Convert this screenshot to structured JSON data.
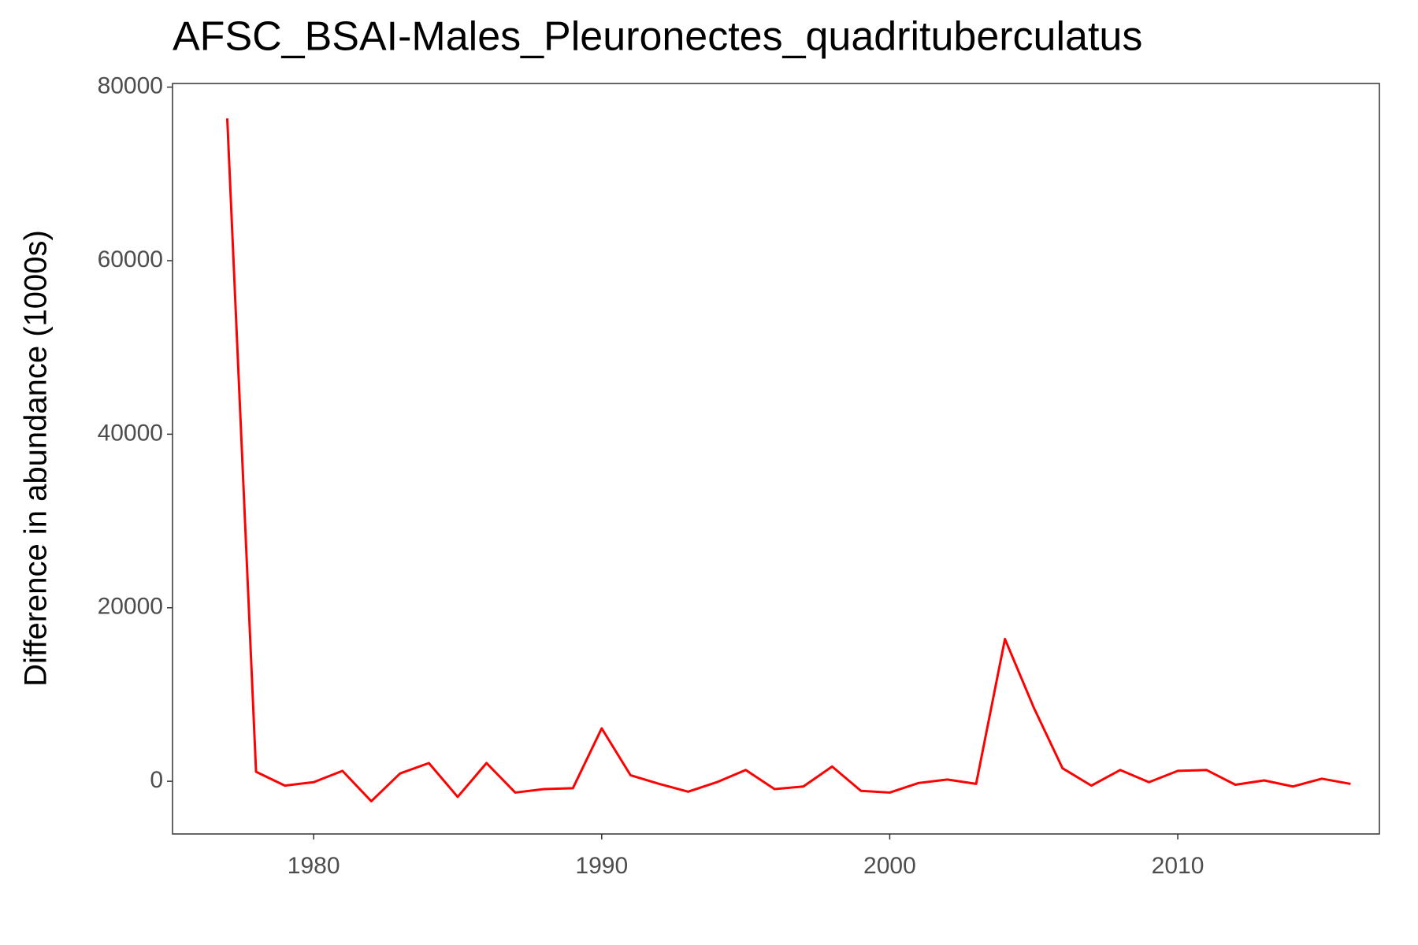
{
  "chart_data": {
    "type": "line",
    "title": "AFSC_BSAI-Males_Pleuronectes_quadrituberculatus",
    "y_label": "Difference in abundance (1000s)",
    "x": [
      1977,
      1978,
      1979,
      1980,
      1981,
      1982,
      1983,
      1984,
      1985,
      1986,
      1987,
      1988,
      1989,
      1990,
      1991,
      1992,
      1993,
      1994,
      1995,
      1996,
      1997,
      1998,
      1999,
      2000,
      2001,
      2002,
      2003,
      2004,
      2005,
      2006,
      2007,
      2008,
      2009,
      2010,
      2011,
      2012,
      2013,
      2014,
      2015,
      2016
    ],
    "series": [
      {
        "name": "Difference",
        "color": "#ff0000",
        "values": [
          76400,
          1100,
          -500,
          -100,
          1200,
          -2300,
          900,
          2100,
          -1800,
          2100,
          -1300,
          -900,
          -800,
          6100,
          700,
          -300,
          -1200,
          -100,
          1300,
          -900,
          -600,
          1700,
          -1100,
          -1300,
          -200,
          200,
          -300,
          16400,
          8500,
          1500,
          -500,
          1300,
          -100,
          1200,
          1300,
          -400,
          100,
          -600,
          300,
          -300
        ]
      }
    ],
    "xlim": [
      1975.1,
      2017.0
    ],
    "xticks": [
      1980,
      1990,
      2000,
      2010
    ],
    "ylim": [
      -6070,
      80420
    ],
    "yticks": [
      0,
      20000,
      40000,
      60000,
      80000
    ],
    "grid": false
  }
}
